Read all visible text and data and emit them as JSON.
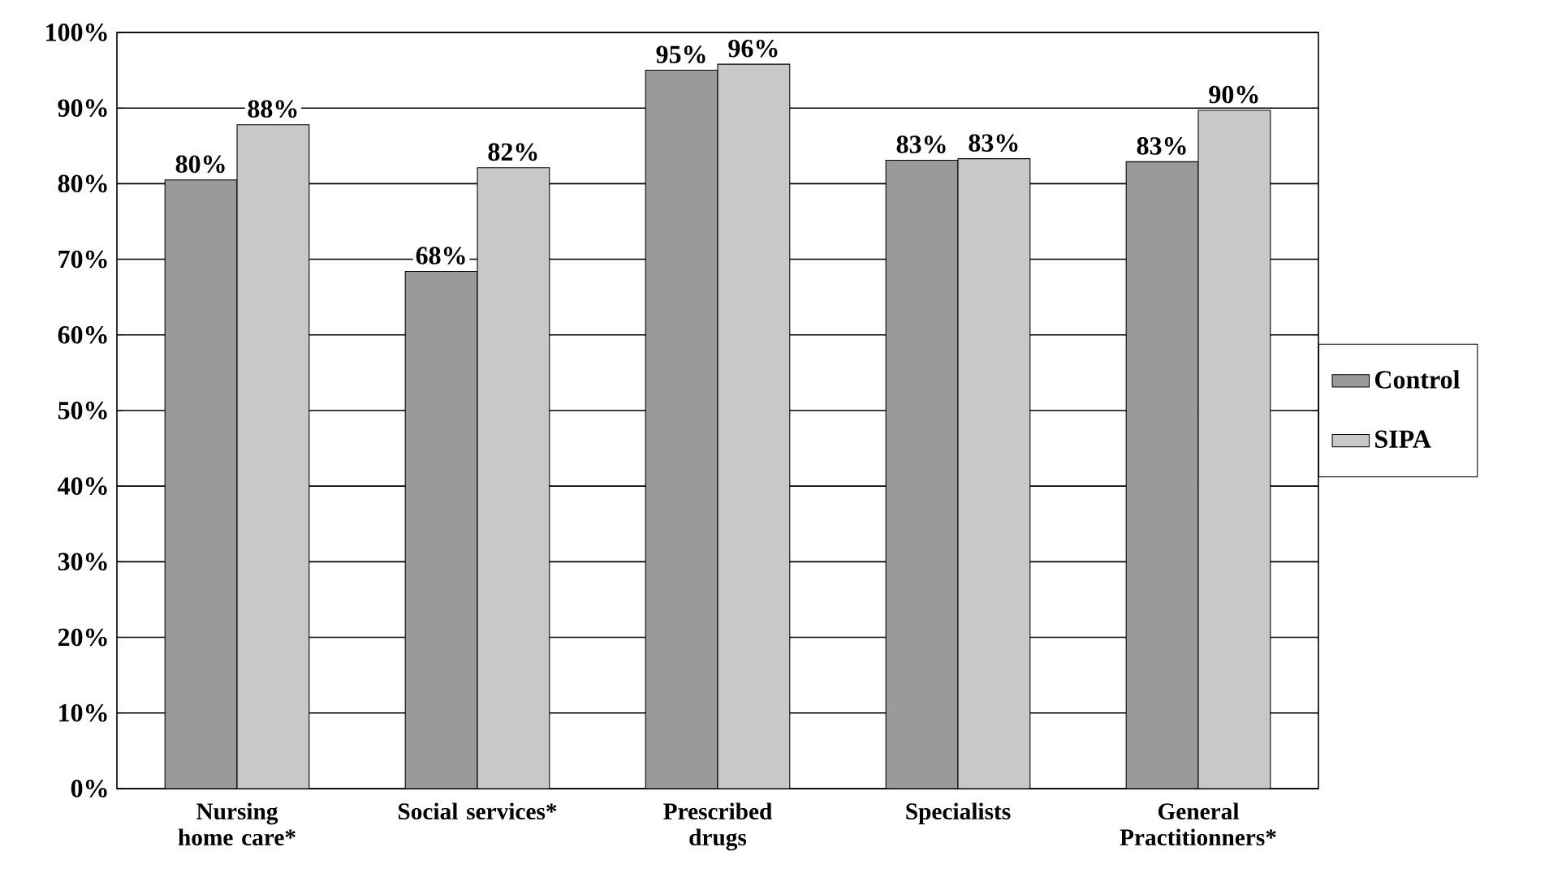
{
  "chart_data": {
    "type": "bar",
    "categories": [
      "Nursing home care*",
      "Social services*",
      "Prescribed drugs",
      "Specialists",
      "General Practitionners*"
    ],
    "series": [
      {
        "name": "Control",
        "color": "#9a9a9a",
        "values": [
          80.5,
          68.4,
          95,
          83.1,
          82.9
        ],
        "value_labels": [
          "80%",
          "68%",
          "95%",
          "83%",
          "83%"
        ]
      },
      {
        "name": "SIPA",
        "color": "#c8c8c8",
        "values": [
          87.8,
          82.1,
          95.8,
          83.3,
          89.7
        ],
        "value_labels": [
          "88%",
          "82%",
          "96%",
          "83%",
          "90%"
        ]
      }
    ],
    "ylim": [
      0,
      100
    ],
    "yticks": [
      {
        "value": 0,
        "label": "0%"
      },
      {
        "value": 10,
        "label": "10%"
      },
      {
        "value": 20,
        "label": "20%"
      },
      {
        "value": 30,
        "label": "30%"
      },
      {
        "value": 40,
        "label": "40%"
      },
      {
        "value": 50,
        "label": "50%"
      },
      {
        "value": 60,
        "label": "60%"
      },
      {
        "value": 70,
        "label": "70%"
      },
      {
        "value": 80,
        "label": "80%"
      },
      {
        "value": 90,
        "label": "90%"
      },
      {
        "value": 100,
        "label": "100%"
      }
    ],
    "grid": "y",
    "legend": "right"
  }
}
